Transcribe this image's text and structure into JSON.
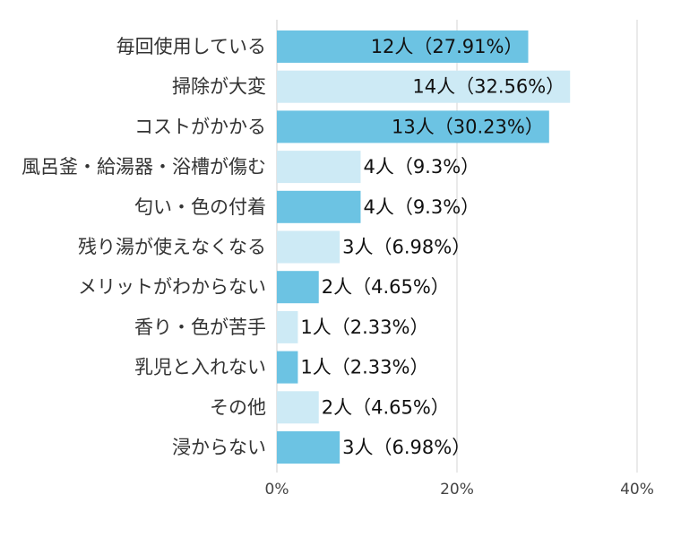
{
  "chart_data": {
    "type": "bar",
    "orientation": "horizontal",
    "categories": [
      "毎回使用している",
      "掃除が大変",
      "コストがかかる",
      "風呂釜・給湯器・浴槽が傷む",
      "匂い・色の付着",
      "残り湯が使えなくなる",
      "メリットがわからない",
      "香り・色が苦手",
      "乳児と入れない",
      "その他",
      "浸からない"
    ],
    "values": [
      27.91,
      32.56,
      30.23,
      9.3,
      9.3,
      6.98,
      4.65,
      2.33,
      2.33,
      4.65,
      6.98
    ],
    "counts": [
      12,
      14,
      13,
      4,
      4,
      3,
      2,
      1,
      1,
      2,
      3
    ],
    "data_labels": [
      "12人（27.91%）",
      "14人（32.56%）",
      "13人（30.23%）",
      "4人（9.3%）",
      "4人（9.3%）",
      "3人（6.98%）",
      "2人（4.65%）",
      "1人（2.33%）",
      "1人（2.33%）",
      "2人（4.65%）",
      "3人（6.98%）"
    ],
    "xlim": [
      0,
      40
    ],
    "x_ticks": [
      0,
      20,
      40
    ],
    "x_tick_labels": [
      "0%",
      "20%",
      "40%"
    ],
    "grid": true,
    "colors": {
      "dark": "#6cc3e3",
      "light": "#cdeaf5",
      "grid": "#e3e3e3"
    }
  }
}
